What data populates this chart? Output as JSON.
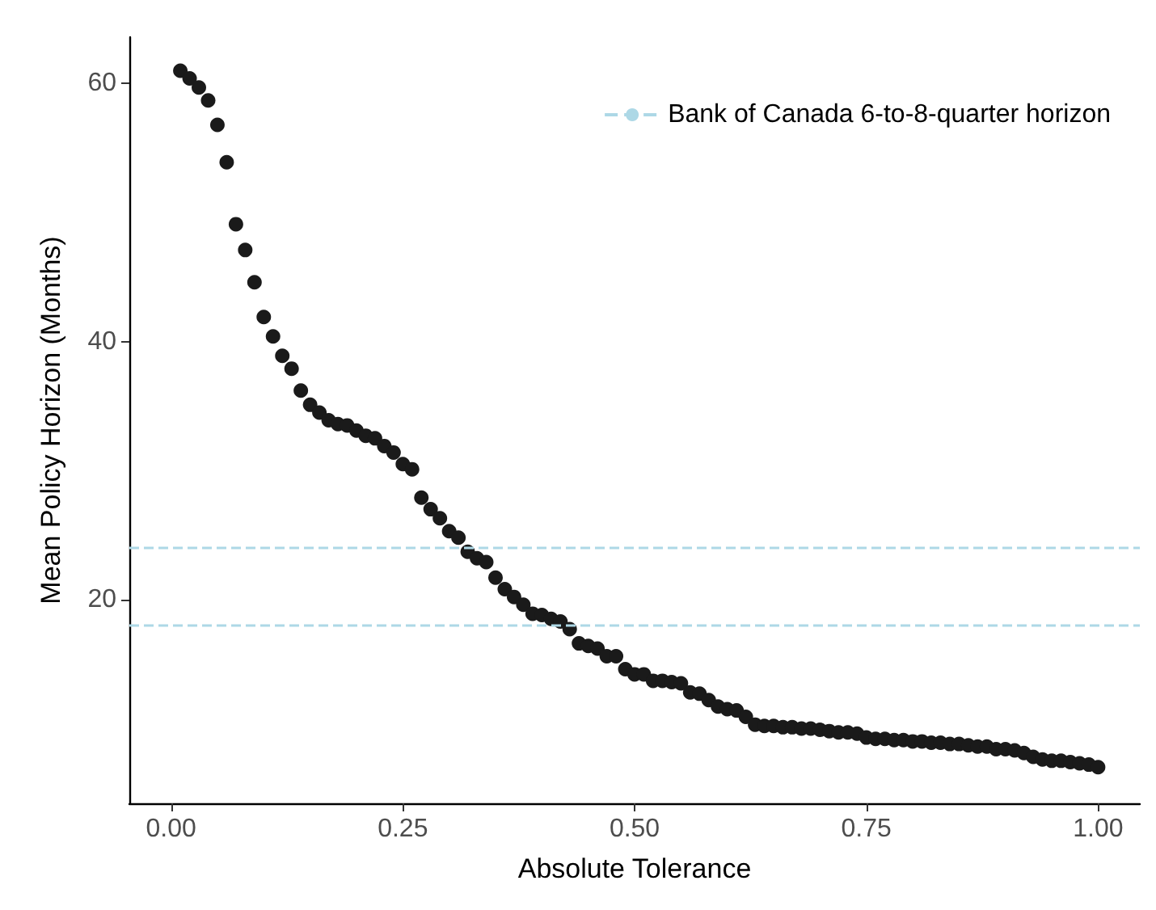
{
  "chart_data": {
    "type": "scatter",
    "xlabel": "Absolute Tolerance",
    "ylabel": "Mean Policy Horizon (Months)",
    "x": [
      0.01,
      0.02,
      0.03,
      0.04,
      0.05,
      0.06,
      0.07,
      0.08,
      0.09,
      0.1,
      0.11,
      0.12,
      0.13,
      0.14,
      0.15,
      0.16,
      0.17,
      0.18,
      0.19,
      0.2,
      0.21,
      0.22,
      0.23,
      0.24,
      0.25,
      0.26,
      0.27,
      0.28,
      0.29,
      0.3,
      0.31,
      0.32,
      0.33,
      0.34,
      0.35,
      0.36,
      0.37,
      0.38,
      0.39,
      0.4,
      0.41,
      0.42,
      0.43,
      0.44,
      0.45,
      0.46,
      0.47,
      0.48,
      0.49,
      0.5,
      0.51,
      0.52,
      0.53,
      0.54,
      0.55,
      0.56,
      0.57,
      0.58,
      0.59,
      0.6,
      0.61,
      0.62,
      0.63,
      0.64,
      0.65,
      0.66,
      0.67,
      0.68,
      0.69,
      0.7,
      0.71,
      0.72,
      0.73,
      0.74,
      0.75,
      0.76,
      0.77,
      0.78,
      0.79,
      0.8,
      0.81,
      0.82,
      0.83,
      0.84,
      0.85,
      0.86,
      0.87,
      0.88,
      0.89,
      0.9,
      0.91,
      0.92,
      0.93,
      0.94,
      0.95,
      0.96,
      0.97,
      0.98,
      0.99,
      1.0
    ],
    "series": [
      {
        "color": "#1a1a1a",
        "values": [
          61.0,
          60.4,
          59.7,
          58.7,
          56.8,
          53.9,
          49.1,
          47.1,
          44.6,
          41.9,
          40.4,
          38.9,
          37.9,
          36.2,
          35.1,
          34.5,
          33.9,
          33.6,
          33.5,
          33.1,
          32.7,
          32.5,
          31.9,
          31.4,
          30.5,
          30.1,
          27.9,
          27.0,
          26.3,
          25.3,
          24.8,
          23.7,
          23.2,
          22.9,
          21.7,
          20.8,
          20.2,
          19.6,
          18.9,
          18.8,
          18.5,
          18.3,
          17.7,
          16.6,
          16.4,
          16.2,
          15.6,
          15.6,
          14.6,
          14.2,
          14.2,
          13.7,
          13.7,
          13.6,
          13.5,
          12.8,
          12.7,
          12.2,
          11.7,
          11.5,
          11.4,
          10.9,
          10.3,
          10.2,
          10.2,
          10.1,
          10.1,
          10.0,
          10.0,
          9.9,
          9.8,
          9.7,
          9.7,
          9.6,
          9.3,
          9.2,
          9.2,
          9.1,
          9.1,
          9.0,
          9.0,
          8.9,
          8.9,
          8.8,
          8.8,
          8.7,
          8.6,
          8.6,
          8.4,
          8.4,
          8.3,
          8.1,
          7.8,
          7.6,
          7.5,
          7.5,
          7.4,
          7.3,
          7.2,
          7.0
        ]
      }
    ],
    "xlim": [
      -0.045,
      1.045
    ],
    "xticks": [
      {
        "value": 0,
        "label": "0.00"
      },
      {
        "value": 0.25,
        "label": "0.25"
      },
      {
        "value": 0.5,
        "label": "0.50"
      },
      {
        "value": 0.75,
        "label": "0.75"
      },
      {
        "value": 1,
        "label": "1.00"
      }
    ],
    "ylim": [
      4.2,
      63.6
    ],
    "yticks": [
      20,
      40,
      60
    ],
    "ref_lines": [
      {
        "axis": "y",
        "value": 24,
        "label": "Bank of Canada 6-to-8-quarter horizon",
        "color": "#add8e6",
        "line_style": "dashed"
      },
      {
        "axis": "y",
        "value": 18,
        "color": "#add8e6",
        "line_style": "dashed"
      }
    ],
    "marker": "circle",
    "grid": false,
    "legend": "top right"
  }
}
